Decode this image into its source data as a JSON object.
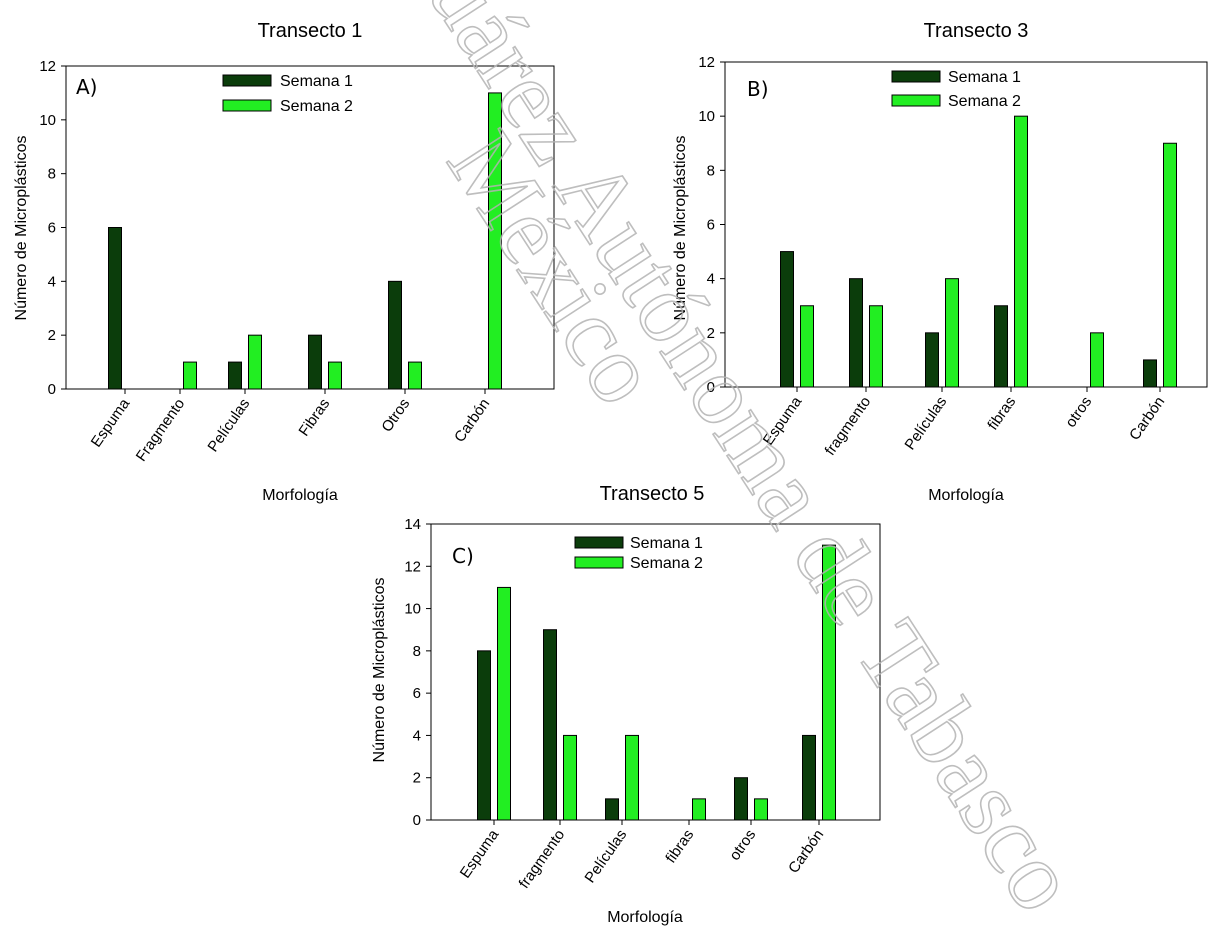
{
  "colors": {
    "semana1": "#0b3d0b",
    "semana2": "#22ee22"
  },
  "watermark": {
    "line1": "Juárez Autónoma de Tabasco",
    "line2": "México"
  },
  "chart_data": [
    {
      "id": "t1",
      "type": "bar",
      "title": "Transecto 1",
      "panel_label": "A)",
      "xlabel": "Morfología",
      "ylabel": "Número de Microplásticos",
      "ylim": [
        0,
        12
      ],
      "yticks": [
        0,
        2,
        4,
        6,
        8,
        10,
        12
      ],
      "categories": [
        "Espuma",
        "Fragmento",
        "Películas",
        "Fibras",
        "Otros",
        "Carbón"
      ],
      "legend_position": "top-center",
      "series": [
        {
          "name": "Semana 1",
          "values": [
            6,
            0,
            1,
            2,
            4,
            0
          ]
        },
        {
          "name": "Semana 2",
          "values": [
            0,
            1,
            2,
            1,
            1,
            11
          ]
        }
      ]
    },
    {
      "id": "t3",
      "type": "bar",
      "title": "Transecto 3",
      "panel_label": "B)",
      "xlabel": "Morfología",
      "ylabel": "Número de Microplásticos",
      "ylim": [
        0,
        12
      ],
      "yticks": [
        0,
        2,
        4,
        6,
        8,
        10,
        12
      ],
      "categories": [
        "Espuma",
        "fragmento",
        "Películas",
        "fibras",
        "otros",
        "Carbón"
      ],
      "legend_position": "top-center",
      "series": [
        {
          "name": "Semana 1",
          "values": [
            5,
            4,
            2,
            3,
            0,
            1
          ]
        },
        {
          "name": "Semana 2",
          "values": [
            3,
            3,
            4,
            10,
            2,
            9
          ]
        }
      ]
    },
    {
      "id": "t5",
      "type": "bar",
      "title": "Transecto 5",
      "panel_label": "C)",
      "xlabel": "Morfología",
      "ylabel": "Número de Microplásticos",
      "ylim": [
        0,
        14
      ],
      "yticks": [
        0,
        2,
        4,
        6,
        8,
        10,
        12,
        14
      ],
      "categories": [
        "Espuma",
        "fragmento",
        "Películas",
        "fibras",
        "otros",
        "Carbón"
      ],
      "legend_position": "top-center",
      "series": [
        {
          "name": "Semana 1",
          "values": [
            8,
            9,
            1,
            0,
            2,
            4
          ]
        },
        {
          "name": "Semana 2",
          "values": [
            11,
            4,
            4,
            1,
            1,
            13
          ]
        }
      ]
    }
  ]
}
